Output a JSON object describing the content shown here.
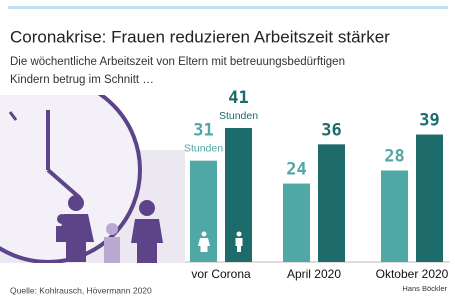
{
  "chart_data": {
    "type": "bar",
    "title": "Coronakrise: Frauen reduzieren Arbeitszeit stärker",
    "subtitle": [
      "Die wöchentliche Arbeitszeit von Eltern mit betreuungsbedürftigen",
      "Kindern betrug im Schnitt …"
    ],
    "unit_label": "Stunden",
    "categories": [
      "vor Corona",
      "April 2020",
      "Oktober 2020"
    ],
    "series": [
      {
        "color": "#4fa7a6",
        "values": [
          31,
          24,
          28
        ]
      },
      {
        "color": "#1d6b6a",
        "values": [
          41,
          36,
          39
        ]
      }
    ],
    "source": "Quelle: Kohlrausch, Hövermann 2020",
    "logo": "Hans Böckler"
  }
}
